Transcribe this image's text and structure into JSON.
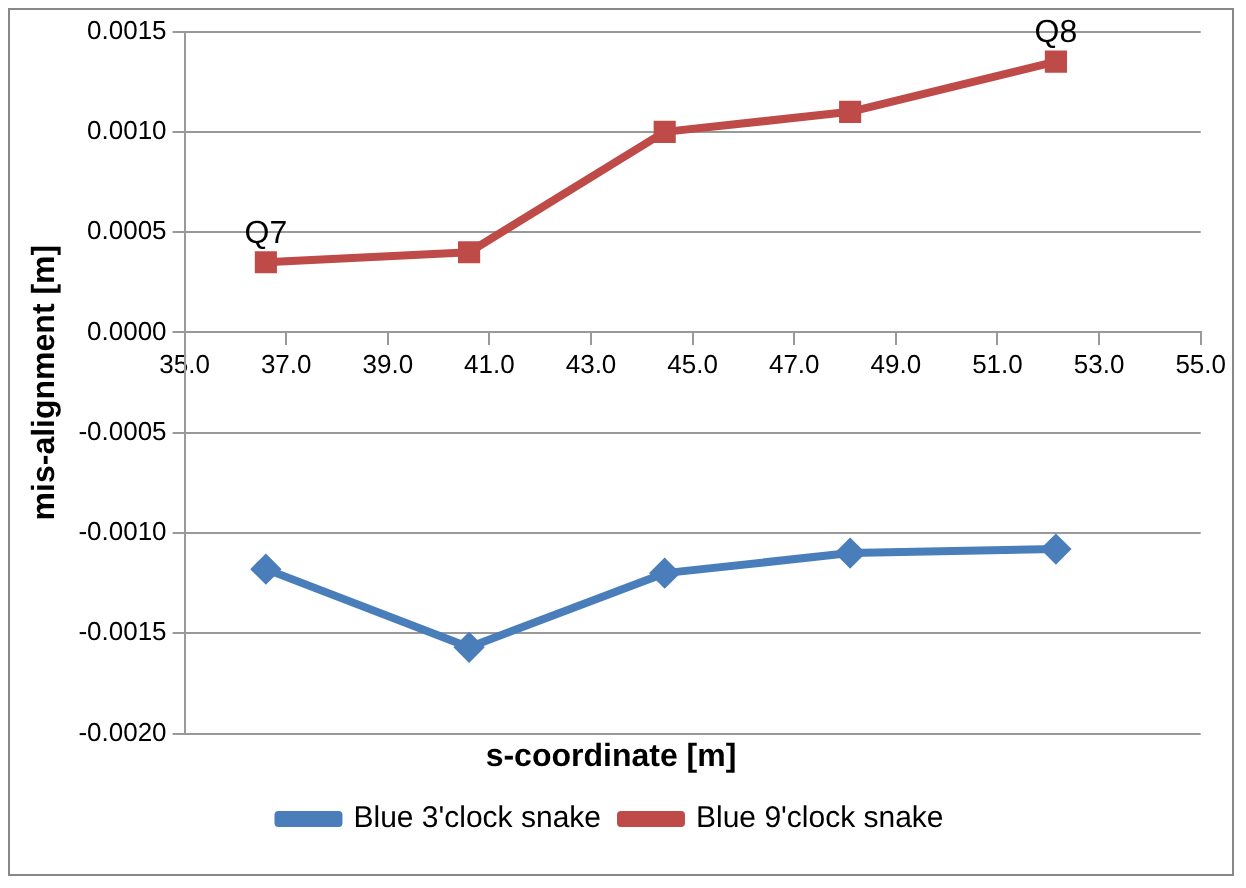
{
  "chart_data": {
    "type": "line",
    "xlabel": "s-coordinate [m]",
    "ylabel": "mis-alignment [m]",
    "xlim": [
      35,
      55
    ],
    "xticks": [
      {
        "value": 35,
        "label": "35.0"
      },
      {
        "value": 37,
        "label": "37.0"
      },
      {
        "value": 39,
        "label": "39.0"
      },
      {
        "value": 41,
        "label": "41.0"
      },
      {
        "value": 43,
        "label": "43.0"
      },
      {
        "value": 45,
        "label": "45.0"
      },
      {
        "value": 47,
        "label": "47.0"
      },
      {
        "value": 49,
        "label": "49.0"
      },
      {
        "value": 51,
        "label": "51.0"
      },
      {
        "value": 53,
        "label": "53.0"
      },
      {
        "value": 55,
        "label": "55.0"
      }
    ],
    "ylim": [
      -0.002,
      0.0015
    ],
    "yticks": [
      {
        "value": -0.002,
        "label": "-0.0020"
      },
      {
        "value": -0.0015,
        "label": "-0.0015"
      },
      {
        "value": -0.001,
        "label": "-0.0010"
      },
      {
        "value": -0.0005,
        "label": "-0.0005"
      },
      {
        "value": 0,
        "label": "0.0000"
      },
      {
        "value": 0.0005,
        "label": "0.0005"
      },
      {
        "value": 0.001,
        "label": "0.0010"
      },
      {
        "value": 0.0015,
        "label": "0.0015"
      }
    ],
    "x": [
      36.6,
      40.6,
      44.45,
      48.1,
      52.15
    ],
    "series": [
      {
        "name": "Blue 3'clock snake",
        "color": "#4a7ebb",
        "marker": "diamond",
        "values": [
          -0.00118,
          -0.00157,
          -0.0012,
          -0.0011,
          -0.00108
        ]
      },
      {
        "name": "Blue 9'clock snake",
        "color": "#be4b48",
        "marker": "square",
        "values": [
          0.00035,
          0.0004,
          0.001,
          0.0011,
          0.00135
        ]
      }
    ],
    "annotations": [
      {
        "text": "Q7",
        "x": 36.6,
        "y": 0.00035
      },
      {
        "text": "Q8",
        "x": 52.15,
        "y": 0.00135
      }
    ],
    "grid": "y",
    "legend": "bottom",
    "line_style": "solid"
  }
}
